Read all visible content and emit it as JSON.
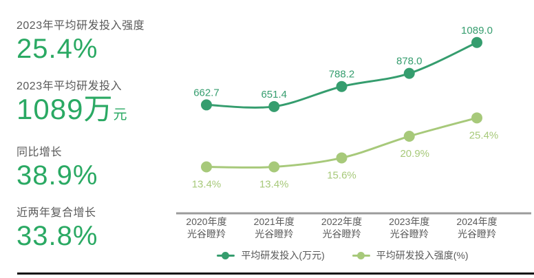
{
  "stats": [
    {
      "label": "2023年平均研发投入强度",
      "value": "25.4%"
    },
    {
      "label": "2023年平均研发投入",
      "value": "1089",
      "unit": "万",
      "unit_sub": "元"
    },
    {
      "label": "同比增长",
      "value": "38.9%"
    },
    {
      "label": "近两年复合增长",
      "value": "33.8%"
    }
  ],
  "chart_data": {
    "type": "line",
    "categories": [
      "2020年度\n光谷瞪羚",
      "2021年度\n光谷瞪羚",
      "2022年度\n光谷瞪羚",
      "2023年度\n光谷瞪羚",
      "2024年度\n光谷瞪羚"
    ],
    "series": [
      {
        "name": "平均研发投入(万元)",
        "values": [
          662.7,
          651.4,
          788.2,
          878.0,
          1089.0
        ],
        "point_labels": [
          "662.7",
          "651.4",
          "788.2",
          "878.0",
          "1089.0"
        ],
        "color": "#359d6e",
        "label_position": "above"
      },
      {
        "name": "平均研发投入强度(%)",
        "values": [
          13.4,
          13.4,
          15.6,
          20.9,
          25.4
        ],
        "point_labels": [
          "13.4%",
          "13.4%",
          "15.6%",
          "20.9%",
          "25.4%"
        ],
        "color": "#a7c97a",
        "label_position": "below"
      }
    ],
    "legend": [
      "平均研发投入(万元)",
      "平均研发投入强度(%)"
    ],
    "legend_position": "bottom",
    "grid": false,
    "xlabel": "",
    "ylabel": "",
    "axis_color": "#9b9b9b",
    "tick_label_color": "#595959"
  },
  "colors": {
    "stat_value_green": "#2aa963",
    "label_gray": "#595959",
    "series1_green": "#359d6e",
    "series2_green": "#a7c97a",
    "bottom_rule_black": "#0d0d0d"
  }
}
